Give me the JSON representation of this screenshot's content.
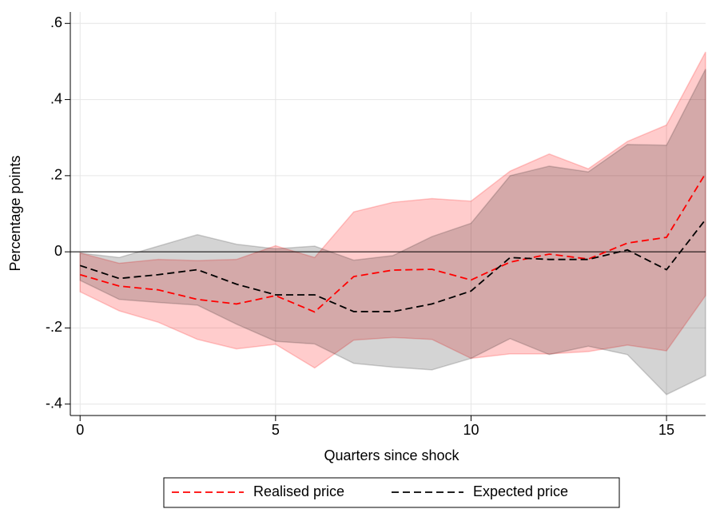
{
  "chart_data": {
    "type": "line-band",
    "x_label": "Quarters since shock",
    "y_label": "Percentage points",
    "x": [
      0,
      1,
      2,
      3,
      4,
      5,
      6,
      7,
      8,
      9,
      10,
      11,
      12,
      13,
      14,
      15,
      16
    ],
    "xlim": [
      -0.25,
      16
    ],
    "xticks": [
      0,
      5,
      10,
      15
    ],
    "ylim": [
      -0.43,
      0.63
    ],
    "yticks": [
      {
        "value": -0.4,
        "label": "-.4"
      },
      {
        "value": -0.2,
        "label": "-.2"
      },
      0,
      {
        "value": 0.2,
        "label": ".2"
      },
      {
        "value": 0.4,
        "label": ".4"
      },
      {
        "value": 0.6,
        "label": ".6"
      }
    ],
    "grid": true,
    "reference_line": 0,
    "legend": "bottom",
    "series": [
      {
        "name": "Realised price",
        "color": "#ff0000",
        "band_color": "rgba(255,0,0,0.2)",
        "values": [
          -0.06,
          -0.09,
          -0.1,
          -0.125,
          -0.137,
          -0.115,
          -0.158,
          -0.065,
          -0.048,
          -0.046,
          -0.074,
          -0.027,
          -0.006,
          -0.019,
          0.023,
          0.038,
          0.206
        ],
        "upper": [
          -0.003,
          -0.03,
          -0.02,
          -0.023,
          -0.02,
          0.016,
          -0.015,
          0.105,
          0.13,
          0.14,
          0.133,
          0.212,
          0.257,
          0.218,
          0.29,
          0.333,
          0.525
        ],
        "lower": [
          -0.105,
          -0.155,
          -0.185,
          -0.23,
          -0.255,
          -0.243,
          -0.305,
          -0.232,
          -0.225,
          -0.23,
          -0.28,
          -0.268,
          -0.268,
          -0.262,
          -0.245,
          -0.26,
          -0.115
        ]
      },
      {
        "name": "Expected price",
        "color": "#000000",
        "band_color": "rgba(0,0,0,0.17)",
        "values": [
          -0.036,
          -0.07,
          -0.06,
          -0.047,
          -0.085,
          -0.113,
          -0.113,
          -0.157,
          -0.157,
          -0.137,
          -0.103,
          -0.015,
          -0.02,
          -0.02,
          0.005,
          -0.047,
          0.085
        ],
        "upper": [
          -0.003,
          -0.015,
          0.015,
          0.045,
          0.02,
          0.008,
          0.015,
          -0.022,
          -0.01,
          0.04,
          0.075,
          0.2,
          0.225,
          0.21,
          0.282,
          0.28,
          0.48
        ],
        "lower": [
          -0.075,
          -0.125,
          -0.133,
          -0.14,
          -0.19,
          -0.235,
          -0.242,
          -0.293,
          -0.303,
          -0.31,
          -0.28,
          -0.228,
          -0.27,
          -0.248,
          -0.27,
          -0.375,
          -0.325
        ]
      }
    ]
  }
}
